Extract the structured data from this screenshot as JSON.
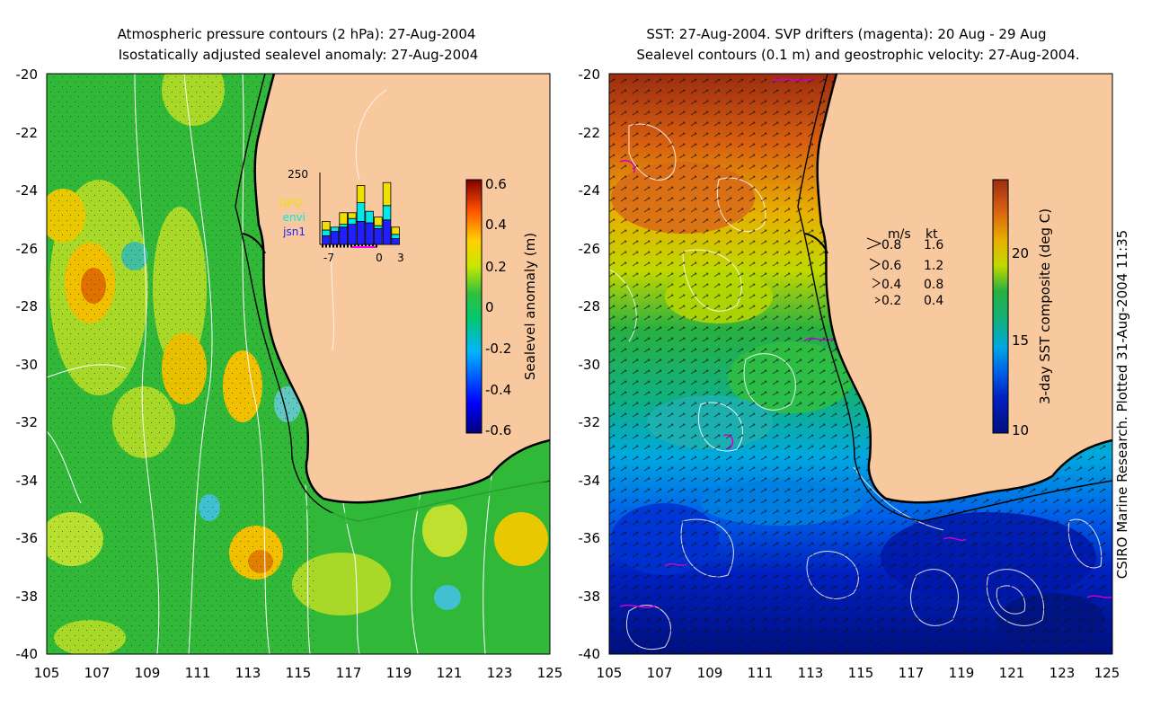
{
  "left_panel": {
    "title_line1": "Atmospheric pressure contours (2 hPa): 27-Aug-2004",
    "title_line2": "Isostatically adjusted sealevel anomaly: 27-Aug-2004",
    "lat_ticks": [
      "-20",
      "-22",
      "-24",
      "-26",
      "-28",
      "-30",
      "-32",
      "-34",
      "-36",
      "-38",
      "-40"
    ],
    "lon_ticks": [
      "105",
      "107",
      "109",
      "111",
      "113",
      "115",
      "117",
      "119",
      "121",
      "123",
      "125"
    ],
    "colorbar": {
      "label": "Sealevel anomaly (m)",
      "ticks": [
        "0.6",
        "0.4",
        "0.2",
        "0",
        "-0.2",
        "-0.4",
        "-0.6"
      ]
    },
    "inset": {
      "ytick": "250",
      "legend": [
        {
          "label": "GFO",
          "color": "#f0e000"
        },
        {
          "label": "envi",
          "color": "#00e8e8"
        },
        {
          "label": "jsn1",
          "color": "#2020ff"
        }
      ],
      "xticks": [
        "-7",
        "0",
        "3"
      ],
      "chart_data": {
        "type": "bar",
        "title": "",
        "xlabel": "",
        "ylabel": "",
        "ylim": [
          0,
          250
        ],
        "categories": [
          "-7",
          "-6",
          "-5",
          "-4",
          "-3",
          "-2",
          "-1",
          "0",
          "1"
        ],
        "series": [
          {
            "name": "jsn1",
            "values": [
              30,
              45,
              60,
              70,
              80,
              75,
              55,
              85,
              20
            ]
          },
          {
            "name": "envi",
            "values": [
              20,
              15,
              10,
              20,
              65,
              40,
              10,
              50,
              15
            ]
          },
          {
            "name": "GFO",
            "values": [
              30,
              0,
              40,
              20,
              60,
              0,
              30,
              80,
              25
            ]
          }
        ]
      }
    }
  },
  "right_panel": {
    "title_line1": "SST: 27-Aug-2004. SVP drifters (magenta): 20 Aug - 29 Aug",
    "title_line2": "Sealevel contours (0.1 m) and geostrophic velocity: 27-Aug-2004.",
    "lat_ticks": [
      "-20",
      "-22",
      "-24",
      "-26",
      "-28",
      "-30",
      "-32",
      "-34",
      "-36",
      "-38",
      "-40"
    ],
    "lon_ticks": [
      "105",
      "107",
      "109",
      "111",
      "113",
      "115",
      "117",
      "119",
      "121",
      "123",
      "125"
    ],
    "colorbar": {
      "label": "3-day SST composite (deg C)",
      "ticks": [
        "20",
        "15",
        "10"
      ]
    },
    "velocity_legend": {
      "header_ms": "m/s",
      "header_kt": "kt",
      "rows": [
        {
          "ms": "0.8",
          "kt": "1.6"
        },
        {
          "ms": "0.6",
          "kt": "1.2"
        },
        {
          "ms": "0.4",
          "kt": "0.8"
        },
        {
          "ms": "0.2",
          "kt": "0.4"
        }
      ]
    }
  },
  "credit": "CSIRO Marine Research. Plotted 31-Aug-2004 11:35",
  "colors": {
    "land": "#f8c89e",
    "coast": "#000000",
    "contour": "#ffffff",
    "drifter": "#cc00cc"
  }
}
